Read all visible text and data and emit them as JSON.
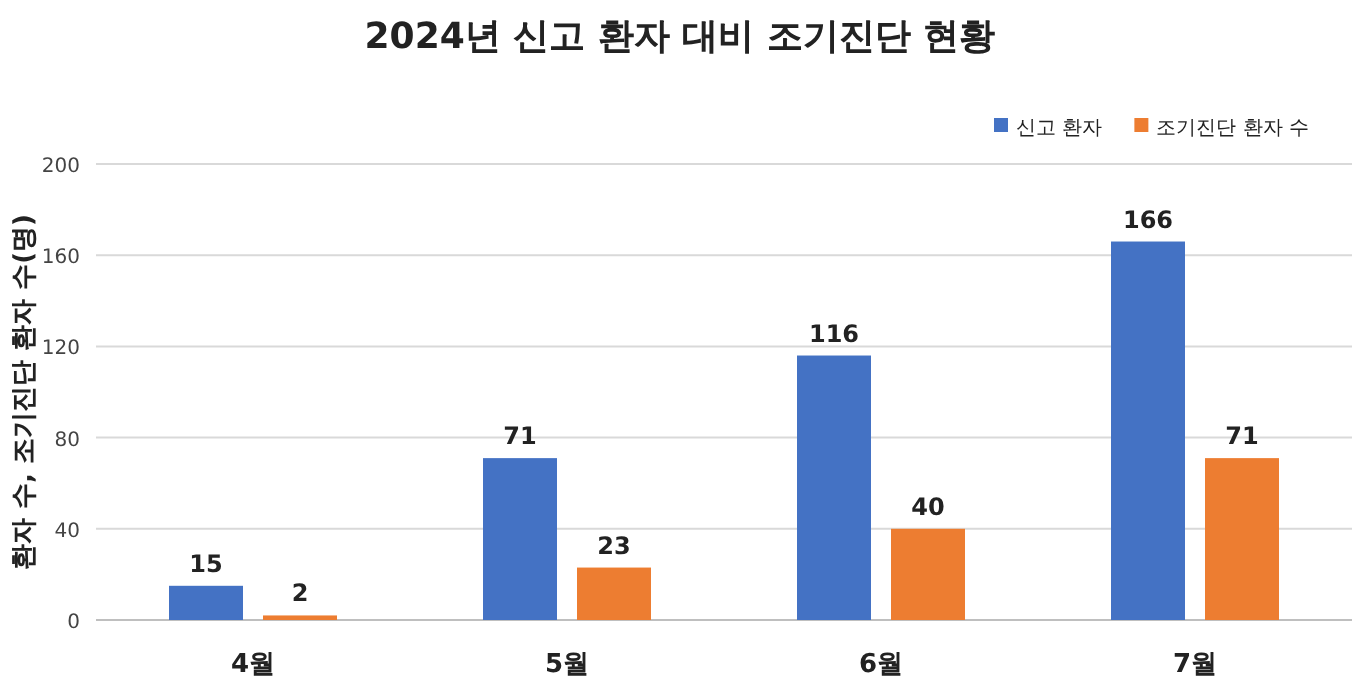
{
  "chart_data": {
    "type": "bar",
    "title": "2024년 신고 환자 대비 조기진단 현황",
    "ylabel": "환자 수, 조기진단 환자 수(명)",
    "categories": [
      "4월",
      "5월",
      "6월",
      "7월"
    ],
    "series": [
      {
        "name": "신고 환자",
        "color": "#4472c4",
        "values": [
          15,
          71,
          116,
          166
        ]
      },
      {
        "name": "조기진단 환자 수",
        "color": "#ed7d31",
        "values": [
          2,
          23,
          40,
          71
        ]
      }
    ],
    "ylim": [
      0,
      200
    ],
    "yticks": [
      0,
      40,
      80,
      120,
      160,
      200
    ],
    "grid": "y",
    "legend": "top right",
    "data_labels": true
  }
}
